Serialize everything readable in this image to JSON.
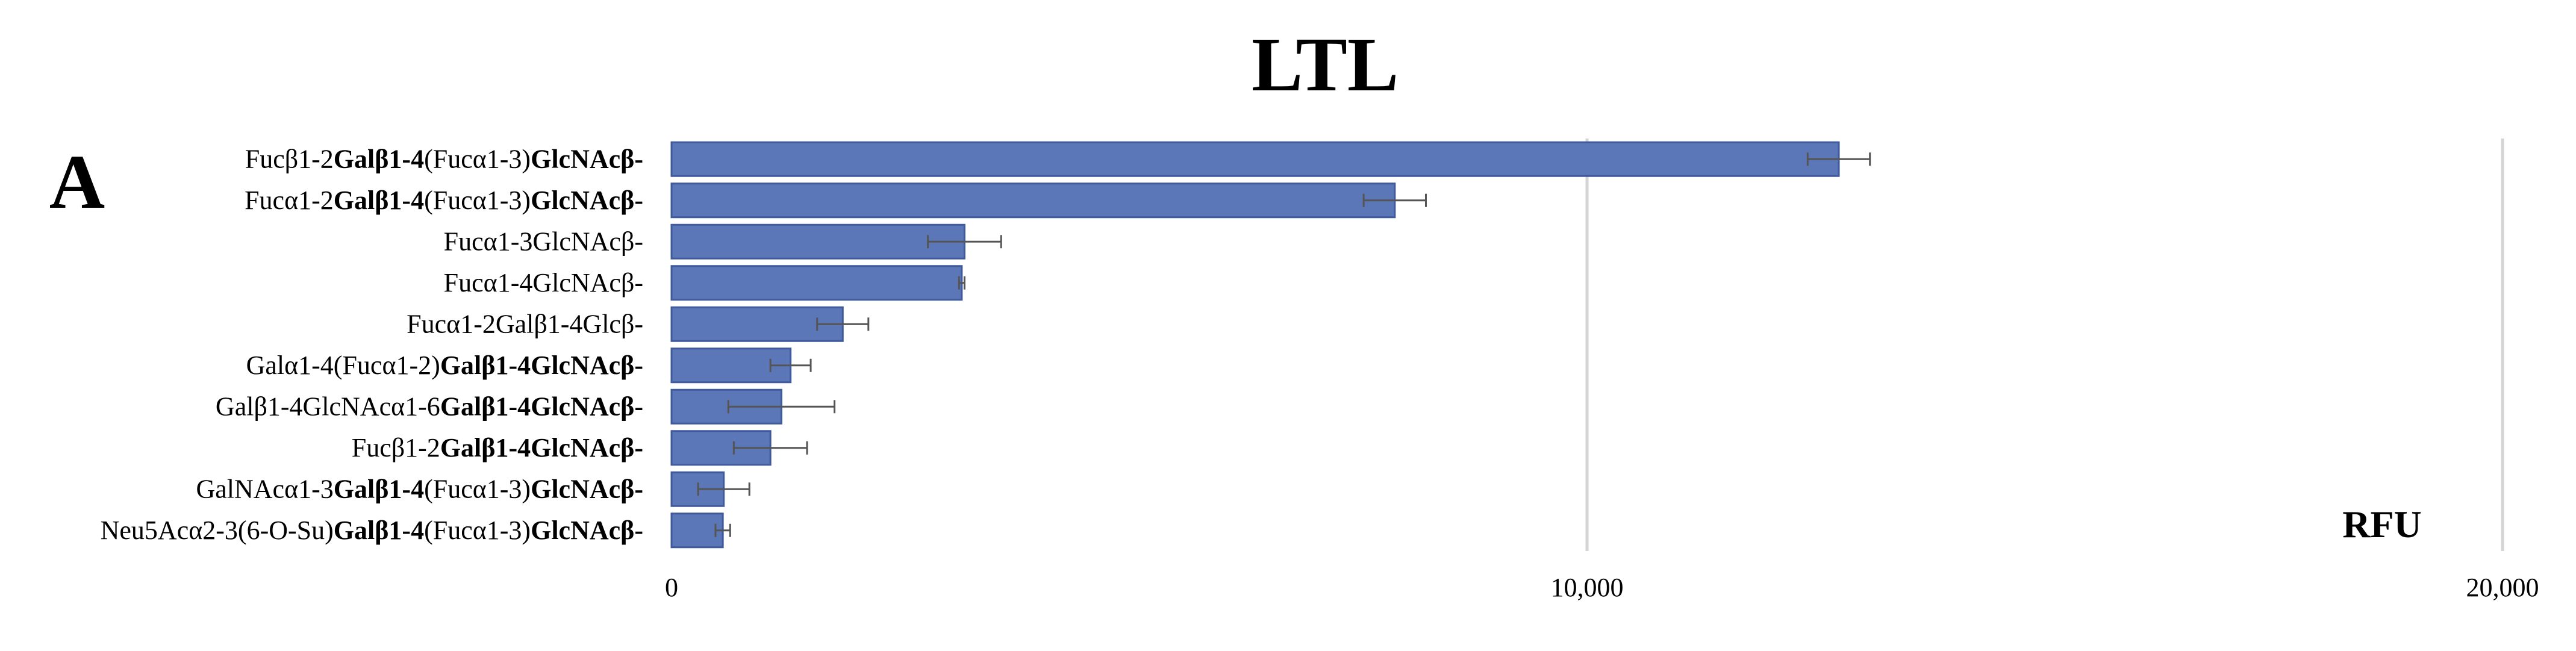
{
  "chart_data": {
    "type": "bar",
    "orientation": "horizontal",
    "title": "LTL",
    "panel_label": "A",
    "unit_label": "RFU",
    "xlim": [
      0,
      20000
    ],
    "xticks": [
      0,
      10000,
      20000
    ],
    "xtick_labels": [
      "0",
      "10,000",
      "20,000"
    ],
    "grid": true,
    "colors": {
      "bar": "#5b77b7",
      "bar_edge": "#3e5a9a",
      "grid": "#d4d4d4",
      "error": "#555555"
    },
    "categories": [
      [
        {
          "t": "Fucβ1-2",
          "b": false
        },
        {
          "t": "Galβ1-4",
          "b": true
        },
        {
          "t": "(Fucα1-3)",
          "b": false
        },
        {
          "t": "GlcNAcβ-",
          "b": true
        }
      ],
      [
        {
          "t": "Fucα1-2",
          "b": false
        },
        {
          "t": "Galβ1-4",
          "b": true
        },
        {
          "t": "(Fucα1-3)",
          "b": false
        },
        {
          "t": "GlcNAcβ-",
          "b": true
        }
      ],
      [
        {
          "t": "Fucα1-3GlcNAcβ-",
          "b": false
        }
      ],
      [
        {
          "t": "Fucα1-4GlcNAcβ-",
          "b": false
        }
      ],
      [
        {
          "t": "Fucα1-2Galβ1-4Glcβ-",
          "b": false
        }
      ],
      [
        {
          "t": "Galα1-4(Fucα1-2)",
          "b": false
        },
        {
          "t": "Galβ1-4GlcNAcβ-",
          "b": true
        }
      ],
      [
        {
          "t": "Galβ1-4GlcNAcα1-6",
          "b": false
        },
        {
          "t": "Galβ1-4GlcNAcβ-",
          "b": true
        }
      ],
      [
        {
          "t": "Fucβ1-2",
          "b": false
        },
        {
          "t": "Galβ1-4GlcNAcβ-",
          "b": true
        }
      ],
      [
        {
          "t": "GalNAcα1-3",
          "b": false
        },
        {
          "t": "Galβ1-4",
          "b": true
        },
        {
          "t": "(Fucα1-3)",
          "b": false
        },
        {
          "t": "GlcNAcβ-",
          "b": true
        }
      ],
      [
        {
          "t": "Neu5Acα2-3(6-O-Su)",
          "b": false
        },
        {
          "t": "Galβ1-4",
          "b": true
        },
        {
          "t": "(Fucα1-3)",
          "b": false
        },
        {
          "t": "GlcNAcβ-",
          "b": true
        }
      ]
    ],
    "values": [
      12750,
      7900,
      3200,
      3170,
      1870,
      1300,
      1200,
      1080,
      570,
      560
    ],
    "errors": [
      340,
      340,
      400,
      30,
      280,
      220,
      580,
      400,
      280,
      80
    ]
  }
}
